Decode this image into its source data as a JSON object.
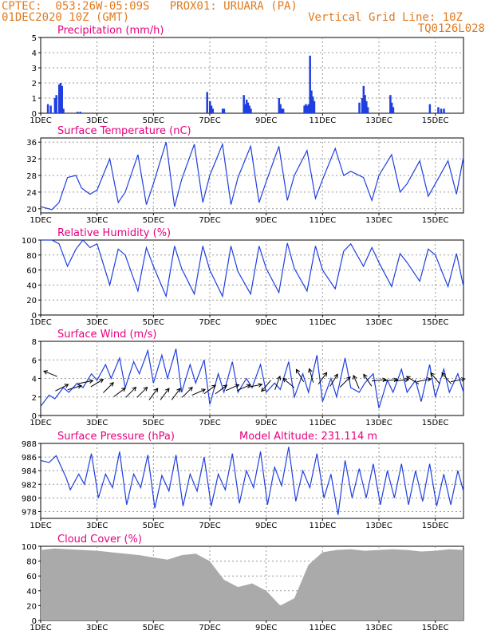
{
  "header": {
    "line1": "CPTEC:  053:26W-05:09S   PROX01: URUARA (PA)",
    "line2": "01DEC2020 10Z (GMT)",
    "grid_note": "Vertical Grid Line: 10Z",
    "run_id": "TQ0126L028"
  },
  "colors": {
    "header": "#e07a20",
    "title": "#e6007e",
    "series": "#1f3fe0",
    "cloud": "#aaaaaa",
    "grid": "#999999"
  },
  "chart_data": [
    {
      "id": "precip",
      "type": "bar",
      "title": "Precipitation (mm/h)",
      "xlabels": [
        "1DEC",
        "3DEC",
        "5DEC",
        "7DEC",
        "9DEC",
        "11DEC",
        "13DEC",
        "15DEC"
      ],
      "x_range_days": [
        0,
        15
      ],
      "ylim": [
        0,
        5
      ],
      "yticks": [
        0,
        1,
        2,
        3,
        4,
        5
      ],
      "grid": true,
      "x": [
        0.25,
        0.35,
        0.5,
        0.55,
        0.65,
        0.7,
        0.75,
        0.8,
        1.3,
        1.4,
        5.9,
        6.0,
        6.05,
        6.1,
        6.45,
        6.5,
        7.2,
        7.25,
        7.3,
        7.35,
        7.4,
        7.45,
        8.45,
        8.5,
        8.55,
        8.6,
        9.35,
        9.4,
        9.45,
        9.5,
        9.55,
        9.6,
        9.65,
        9.7,
        11.3,
        11.4,
        11.45,
        11.5,
        11.55,
        11.6,
        12.4,
        12.45,
        12.5,
        13.8,
        14.1,
        14.2,
        14.3
      ],
      "values": [
        0.6,
        0.5,
        1.0,
        1.2,
        1.9,
        2.0,
        1.8,
        0.3,
        0.1,
        0.1,
        1.4,
        0.8,
        0.5,
        0.3,
        0.3,
        0.3,
        1.2,
        0.6,
        0.9,
        0.7,
        0.5,
        0.3,
        1.0,
        0.6,
        0.3,
        0.3,
        0.5,
        0.6,
        0.5,
        0.6,
        3.8,
        1.5,
        1.1,
        0.8,
        0.7,
        1.0,
        1.8,
        1.2,
        0.8,
        0.4,
        1.2,
        0.7,
        0.4,
        0.6,
        0.4,
        0.3,
        0.3
      ]
    },
    {
      "id": "temp",
      "type": "line",
      "title": "Surface Temperature (nC)",
      "xlabels": [
        "1DEC",
        "3DEC",
        "5DEC",
        "7DEC",
        "9DEC",
        "11DEC",
        "13DEC",
        "15DEC"
      ],
      "x_range_days": [
        0,
        15
      ],
      "ylim": [
        19,
        37
      ],
      "yticks": [
        20,
        24,
        28,
        32,
        36
      ],
      "grid": true,
      "x": [
        0,
        0.4,
        0.65,
        0.95,
        1.25,
        1.45,
        1.75,
        2.0,
        2.45,
        2.75,
        3.0,
        3.45,
        3.75,
        4.0,
        4.45,
        4.75,
        5.0,
        5.45,
        5.75,
        6.0,
        6.45,
        6.75,
        7.0,
        7.45,
        7.75,
        8.0,
        8.45,
        8.75,
        9.0,
        9.45,
        9.75,
        10.0,
        10.45,
        10.75,
        11.0,
        11.45,
        11.75,
        12.0,
        12.45,
        12.75,
        13.0,
        13.45,
        13.75,
        14.0,
        14.45,
        14.75,
        15.0
      ],
      "values": [
        20.5,
        19.8,
        21.5,
        27.5,
        28.0,
        25.0,
        23.5,
        24.5,
        32.0,
        21.5,
        24.0,
        33.0,
        21.0,
        26.0,
        36.0,
        20.5,
        27.0,
        35.5,
        21.5,
        28.0,
        35.5,
        21.0,
        27.5,
        35.0,
        21.5,
        26.5,
        35.0,
        22.0,
        28.0,
        34.0,
        22.5,
        27.0,
        34.5,
        28.0,
        29.0,
        27.5,
        22.0,
        28.0,
        33.0,
        24.0,
        26.0,
        31.5,
        23.0,
        26.0,
        31.5,
        23.5,
        32.5
      ]
    },
    {
      "id": "rh",
      "type": "line",
      "title": "Relative Humidity (%)",
      "xlabels": [
        "1DEC",
        "3DEC",
        "5DEC",
        "7DEC",
        "9DEC",
        "11DEC",
        "13DEC",
        "15DEC"
      ],
      "x_range_days": [
        0,
        15
      ],
      "ylim": [
        0,
        100
      ],
      "yticks": [
        0,
        20,
        40,
        60,
        80,
        100
      ],
      "grid": true,
      "x": [
        0,
        0.4,
        0.65,
        0.95,
        1.25,
        1.5,
        1.75,
        2.0,
        2.45,
        2.75,
        3.0,
        3.45,
        3.75,
        4.0,
        4.45,
        4.75,
        5.0,
        5.45,
        5.75,
        6.0,
        6.45,
        6.75,
        7.0,
        7.45,
        7.75,
        8.0,
        8.45,
        8.75,
        9.0,
        9.45,
        9.75,
        10.0,
        10.45,
        10.75,
        11.0,
        11.45,
        11.75,
        12.0,
        12.45,
        12.75,
        13.0,
        13.45,
        13.75,
        14.0,
        14.45,
        14.75,
        15.0
      ],
      "values": [
        100,
        100,
        95,
        65,
        88,
        100,
        90,
        95,
        40,
        88,
        80,
        32,
        90,
        65,
        25,
        92,
        62,
        28,
        92,
        60,
        25,
        92,
        58,
        28,
        92,
        62,
        30,
        96,
        62,
        32,
        92,
        60,
        35,
        85,
        95,
        65,
        90,
        70,
        38,
        82,
        70,
        45,
        88,
        80,
        38,
        82,
        38
      ]
    },
    {
      "id": "wind",
      "type": "line",
      "title": "Surface Wind (m/s)",
      "xlabels": [
        "1DEC",
        "3DEC",
        "5DEC",
        "7DEC",
        "9DEC",
        "11DEC",
        "13DEC",
        "15DEC"
      ],
      "x_range_days": [
        0,
        15
      ],
      "ylim": [
        0,
        8
      ],
      "yticks": [
        0,
        2,
        4,
        6,
        8
      ],
      "grid": true,
      "x": [
        0,
        0.3,
        0.5,
        0.8,
        1.0,
        1.3,
        1.5,
        1.8,
        2.0,
        2.3,
        2.5,
        2.8,
        3.0,
        3.3,
        3.5,
        3.8,
        4.0,
        4.3,
        4.5,
        4.8,
        5.0,
        5.3,
        5.5,
        5.8,
        6.0,
        6.3,
        6.5,
        6.8,
        7.0,
        7.3,
        7.5,
        7.8,
        8.0,
        8.3,
        8.5,
        8.8,
        9.0,
        9.3,
        9.5,
        9.8,
        10.0,
        10.3,
        10.5,
        10.8,
        11.0,
        11.3,
        11.5,
        11.8,
        12.0,
        12.3,
        12.5,
        12.8,
        13.0,
        13.3,
        13.5,
        13.8,
        14.0,
        14.3,
        14.5,
        14.8,
        15.0
      ],
      "values": [
        1.0,
        2.2,
        1.8,
        3.0,
        2.5,
        3.5,
        3.0,
        4.5,
        3.8,
        5.5,
        4.0,
        6.2,
        3.0,
        5.8,
        4.5,
        7.0,
        3.5,
        6.5,
        4.0,
        7.2,
        2.5,
        5.5,
        3.5,
        6.0,
        1.2,
        4.5,
        2.5,
        5.8,
        2.5,
        4.0,
        3.0,
        5.5,
        2.5,
        3.5,
        2.8,
        5.8,
        2.0,
        4.5,
        2.5,
        6.5,
        1.5,
        4.0,
        2.0,
        6.2,
        3.0,
        2.5,
        3.5,
        4.5,
        0.8,
        3.8,
        2.5,
        5.0,
        2.5,
        3.8,
        1.5,
        5.5,
        2.0,
        5.0,
        2.5,
        4.5,
        2.5
      ],
      "arrows": {
        "x": [
          0.35,
          0.75,
          1.2,
          1.6,
          2.0,
          2.4,
          2.8,
          3.2,
          3.6,
          4.0,
          4.4,
          4.8,
          5.2,
          5.6,
          6.0,
          6.4,
          6.8,
          7.2,
          7.6,
          8.0,
          8.4,
          8.8,
          9.2,
          9.6,
          10.0,
          10.4,
          10.8,
          11.2,
          11.6,
          12.0,
          12.4,
          12.8,
          13.2,
          13.6,
          14.0,
          14.4,
          14.8
        ],
        "y": [
          4.5,
          3.0,
          3.0,
          3.6,
          3.5,
          3.0,
          2.5,
          2.5,
          2.5,
          2.3,
          2.3,
          2.3,
          2.5,
          2.5,
          2.8,
          2.8,
          3.0,
          3.0,
          3.2,
          3.2,
          3.5,
          3.5,
          4.3,
          4.3,
          4.0,
          3.8,
          3.6,
          3.6,
          3.8,
          3.8,
          3.8,
          3.8,
          3.8,
          3.8,
          4.0,
          4.0,
          3.8
        ],
        "u": [
          -1,
          1,
          1,
          1,
          1,
          0.7,
          0.8,
          0.7,
          0.7,
          0.6,
          0.6,
          0.6,
          0.7,
          0.9,
          0.8,
          0.8,
          0.9,
          0.9,
          1,
          -0.5,
          0.3,
          -0.6,
          -0.3,
          -0.2,
          0.5,
          0.5,
          0.6,
          -0.3,
          -0.4,
          1,
          1,
          1,
          -0.8,
          1,
          -0.5,
          -0.5,
          1
        ],
        "v": [
          0.4,
          0.5,
          0.3,
          0.2,
          0.6,
          0.7,
          0.6,
          0.7,
          0.7,
          0.8,
          0.8,
          0.8,
          0.7,
          0.4,
          0.6,
          0.6,
          0.4,
          0.4,
          0.2,
          -0.6,
          0.8,
          0.5,
          0.5,
          0.7,
          0.7,
          0.8,
          0.6,
          0.7,
          0.6,
          0.1,
          0.1,
          0.1,
          0.5,
          0.2,
          0.6,
          0.6,
          0.2
        ]
      }
    },
    {
      "id": "pres",
      "type": "line",
      "title": "Surface Pressure (hPa)",
      "model_altitude": "Model Altitude: 231.114 m",
      "xlabels": [
        "1DEC",
        "3DEC",
        "5DEC",
        "7DEC",
        "9DEC",
        "11DEC",
        "13DEC",
        "15DEC"
      ],
      "x_range_days": [
        0,
        15
      ],
      "ylim": [
        977,
        988
      ],
      "yticks": [
        978,
        980,
        982,
        984,
        986,
        988
      ],
      "grid": true,
      "x": [
        0,
        0.3,
        0.55,
        0.9,
        1.05,
        1.35,
        1.55,
        1.8,
        2.05,
        2.3,
        2.55,
        2.8,
        3.05,
        3.3,
        3.55,
        3.8,
        4.05,
        4.3,
        4.55,
        4.8,
        5.05,
        5.3,
        5.55,
        5.8,
        6.05,
        6.3,
        6.55,
        6.8,
        7.05,
        7.3,
        7.55,
        7.8,
        8.05,
        8.3,
        8.55,
        8.8,
        9.05,
        9.3,
        9.55,
        9.8,
        10.05,
        10.3,
        10.55,
        10.8,
        11.05,
        11.3,
        11.55,
        11.8,
        12.05,
        12.3,
        12.55,
        12.8,
        13.05,
        13.3,
        13.55,
        13.8,
        14.05,
        14.3,
        14.55,
        14.8,
        15.0
      ],
      "values": [
        985.5,
        985.2,
        986.2,
        983.0,
        981.2,
        983.5,
        982.0,
        986.5,
        980.0,
        983.5,
        981.5,
        986.8,
        979.0,
        983.5,
        981.5,
        986.3,
        978.5,
        983.3,
        981.0,
        986.3,
        978.8,
        983.5,
        981.0,
        986.0,
        978.8,
        983.5,
        981.2,
        986.5,
        979.2,
        984.0,
        981.5,
        986.8,
        979.0,
        984.5,
        981.8,
        987.5,
        979.5,
        984.0,
        981.5,
        986.5,
        980.0,
        983.5,
        977.5,
        985.5,
        980.0,
        984.3,
        980.0,
        985.0,
        979.0,
        984.0,
        980.0,
        985.0,
        979.0,
        984.0,
        979.5,
        985.0,
        978.8,
        983.5,
        979.0,
        984.0,
        981.0
      ]
    },
    {
      "id": "cloud",
      "type": "bar",
      "title": "Cloud Cover (%)",
      "xlabels": [
        "1DEC",
        "3DEC",
        "5DEC",
        "7DEC",
        "9DEC",
        "11DEC",
        "13DEC",
        "15DEC"
      ],
      "x_range_days": [
        0,
        15
      ],
      "ylim": [
        0,
        100
      ],
      "yticks": [
        0,
        20,
        40,
        60,
        80,
        100
      ],
      "grid": true,
      "x": [
        0,
        0.5,
        1.0,
        1.5,
        2.0,
        2.5,
        3.0,
        3.5,
        4.0,
        4.5,
        5.0,
        5.5,
        6.0,
        6.5,
        7.0,
        7.5,
        8.0,
        8.5,
        9.0,
        9.5,
        10.0,
        10.5,
        11.0,
        11.5,
        12.0,
        12.5,
        13.0,
        13.5,
        14.0,
        14.5,
        15.0
      ],
      "values": [
        95,
        97,
        96,
        95,
        94,
        92,
        90,
        88,
        85,
        82,
        88,
        90,
        80,
        55,
        45,
        50,
        40,
        20,
        30,
        75,
        92,
        95,
        96,
        94,
        95,
        96,
        95,
        93,
        94,
        96,
        95
      ]
    }
  ]
}
